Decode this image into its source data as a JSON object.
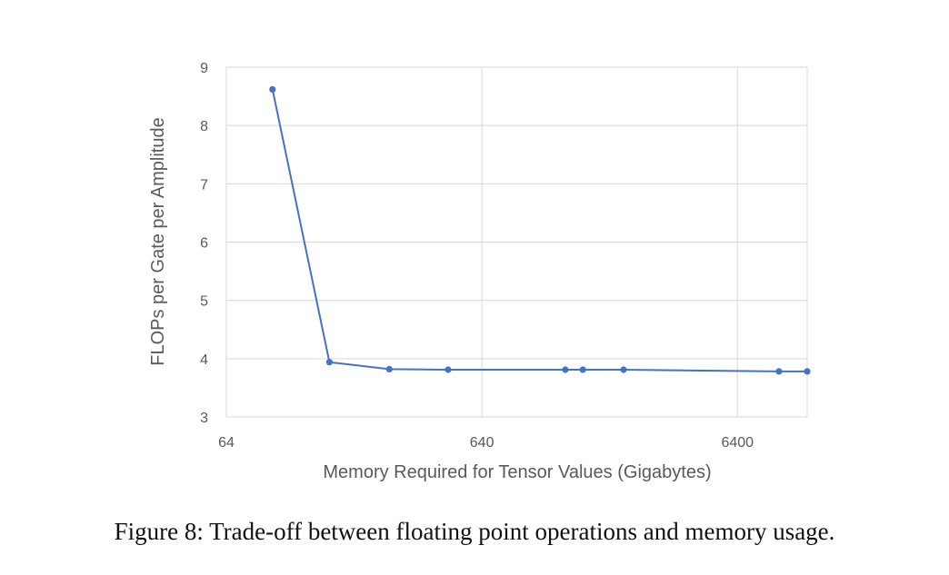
{
  "chart_data": {
    "type": "line",
    "xlabel": "Memory Required for Tensor Values (Gigabytes)",
    "ylabel": "FLOPs per Gate per Amplitude",
    "x_scale": "log",
    "xlim": [
      64,
      12000
    ],
    "ylim": [
      3,
      9
    ],
    "x_ticks": [
      64,
      640,
      6400
    ],
    "x_tick_labels": [
      "64",
      "640",
      "6400"
    ],
    "y_ticks": [
      3,
      4,
      5,
      6,
      7,
      8,
      9
    ],
    "y_tick_labels": [
      "3",
      "4",
      "5",
      "6",
      "7",
      "8",
      "9"
    ],
    "grid": true,
    "series": [
      {
        "color": "#4472c4",
        "x": [
          97,
          162,
          278,
          472,
          1357,
          1590,
          2295,
          9300,
          12000
        ],
        "y": [
          8.62,
          3.94,
          3.82,
          3.81,
          3.81,
          3.81,
          3.81,
          3.78,
          3.78
        ]
      }
    ]
  },
  "caption": "Figure 8: Trade-off between floating point operations and memory usage."
}
